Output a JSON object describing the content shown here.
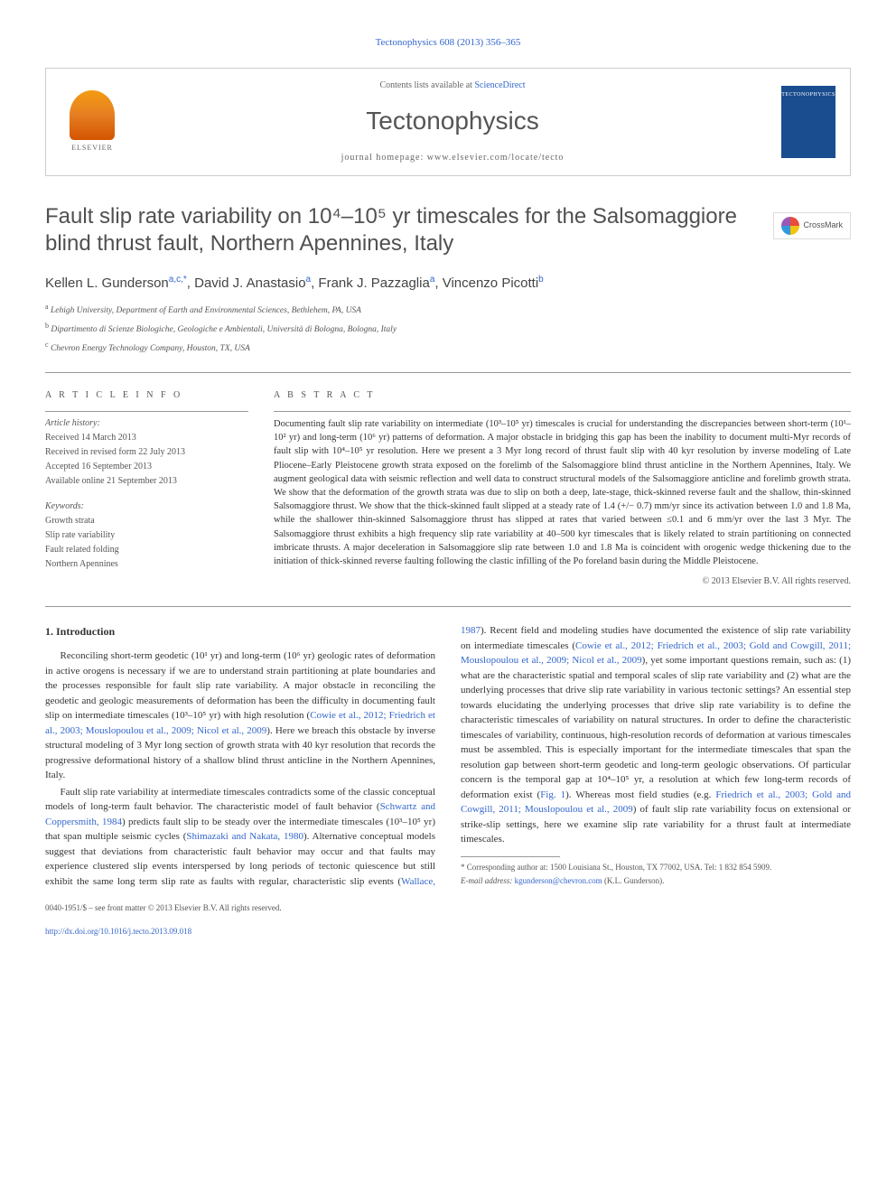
{
  "top_link": "Tectonophysics 608 (2013) 356–365",
  "header": {
    "contents_prefix": "Contents lists available at ",
    "contents_link": "ScienceDirect",
    "journal_name": "Tectonophysics",
    "homepage_prefix": "journal homepage: ",
    "homepage_url": "www.elsevier.com/locate/tecto",
    "elsevier_label": "ELSEVIER",
    "cover_label": "TECTONOPHYSICS"
  },
  "title": "Fault slip rate variability on 10⁴–10⁵ yr timescales for the Salsomaggiore blind thrust fault, Northern Apennines, Italy",
  "crossmark_label": "CrossMark",
  "authors_html": "Kellen L. Gunderson",
  "author1_sup": "a,c,",
  "author1_star": "*",
  "author2": ", David J. Anastasio",
  "author2_sup": "a",
  "author3": ", Frank J. Pazzaglia",
  "author3_sup": "a",
  "author4": ", Vincenzo Picotti",
  "author4_sup": "b",
  "affiliations": {
    "a": "Lehigh University, Department of Earth and Environmental Sciences, Bethlehem, PA, USA",
    "b": "Dipartimento di Scienze Biologiche, Geologiche e Ambientali, Università di Bologna, Bologna, Italy",
    "c": "Chevron Energy Technology Company, Houston, TX, USA"
  },
  "article_info": {
    "heading": "A R T I C L E   I N F O",
    "history_label": "Article history:",
    "received": "Received 14 March 2013",
    "revised": "Received in revised form 22 July 2013",
    "accepted": "Accepted 16 September 2013",
    "online": "Available online 21 September 2013",
    "keywords_label": "Keywords:",
    "kw1": "Growth strata",
    "kw2": "Slip rate variability",
    "kw3": "Fault related folding",
    "kw4": "Northern Apennines"
  },
  "abstract": {
    "heading": "A B S T R A C T",
    "text": "Documenting fault slip rate variability on intermediate (10³–10⁵ yr) timescales is crucial for understanding the discrepancies between short-term (10¹–10² yr) and long-term (10⁶ yr) patterns of deformation. A major obstacle in bridging this gap has been the inability to document multi-Myr records of fault slip with 10⁴–10⁵ yr resolution. Here we present a 3 Myr long record of thrust fault slip with 40 kyr resolution by inverse modeling of Late Pliocene–Early Pleistocene growth strata exposed on the forelimb of the Salsomaggiore blind thrust anticline in the Northern Apennines, Italy. We augment geological data with seismic reflection and well data to construct structural models of the Salsomaggiore anticline and forelimb growth strata. We show that the deformation of the growth strata was due to slip on both a deep, late-stage, thick-skinned reverse fault and the shallow, thin-skinned Salsomaggiore thrust. We show that the thick-skinned fault slipped at a steady rate of 1.4 (+/− 0.7) mm/yr since its activation between 1.0 and 1.8 Ma, while the shallower thin-skinned Salsomaggiore thrust has slipped at rates that varied between ≤0.1 and 6 mm/yr over the last 3 Myr. The Salsomaggiore thrust exhibits a high frequency slip rate variability at 40–500 kyr timescales that is likely related to strain partitioning on connected imbricate thrusts. A major deceleration in Salsomaggiore slip rate between 1.0 and 1.8 Ma is coincident with orogenic wedge thickening due to the initiation of thick-skinned reverse faulting following the clastic infilling of the Po foreland basin during the Middle Pleistocene.",
    "copyright": "© 2013 Elsevier B.V. All rights reserved."
  },
  "section1": {
    "heading": "1. Introduction",
    "p1a": "Reconciling short-term geodetic (10¹ yr) and long-term (10⁶ yr) geologic rates of deformation in active orogens is necessary if we are to understand strain partitioning at plate boundaries and the processes responsible for fault slip rate variability. A major obstacle in reconciling the geodetic and geologic measurements of deformation has been the difficulty in documenting fault slip on intermediate timescales (10³–10⁵ yr) with high resolution (",
    "p1ref1": "Cowie et al., 2012; Friedrich et al., 2003; Mouslopoulou et al., 2009; Nicol et al., 2009",
    "p1b": "). Here we breach this obstacle by inverse structural modeling of 3 Myr long section of growth strata with 40 kyr resolution that records the progressive deformational history of a shallow blind thrust anticline in the Northern Apennines, Italy.",
    "p2a": "Fault slip rate variability at intermediate timescales contradicts some of the classic conceptual models of long-term fault behavior. The characteristic model of fault behavior (",
    "p2ref1": "Schwartz and Coppersmith, 1984",
    "p2b": ") predicts fault slip to be steady over the intermediate timescales (10³–10⁵ yr) that span multiple seismic cycles (",
    "p2ref2": "Shimazaki and Nakata, 1980",
    "p2c": "). Alternative conceptual models suggest that deviations from ",
    "p3a": "characteristic fault behavior may occur and that faults may experience clustered slip events interspersed by long periods of tectonic quiescence but still exhibit the same long term slip rate as faults with regular, characteristic slip events (",
    "p3ref1": "Wallace, 1987",
    "p3b": "). Recent field and modeling studies have documented the existence of slip rate variability on intermediate timescales (",
    "p3ref2": "Cowie et al., 2012; Friedrich et al., 2003; Gold and Cowgill, 2011; Mouslopoulou et al., 2009; Nicol et al., 2009",
    "p3c": "), yet some important questions remain, such as: (1) what are the characteristic spatial and temporal scales of slip rate variability and (2) what are the underlying processes that drive slip rate variability in various tectonic settings? An essential step towards elucidating the underlying processes that drive slip rate variability is to define the characteristic timescales of variability on natural structures. In order to define the characteristic timescales of variability, continuous, high-resolution records of deformation at various timescales must be assembled. This is especially important for the intermediate timescales that span the resolution gap between short-term geodetic and long-term geologic observations. Of particular concern is the temporal gap at 10⁴–10⁵ yr, a resolution at which few long-term records of deformation exist (",
    "p3ref3": "Fig. 1",
    "p3d": "). Whereas most field studies (e.g. ",
    "p3ref4": "Friedrich et al., 2003; Gold and Cowgill, 2011; Mouslopoulou et al., 2009",
    "p3e": ") of fault slip rate variability focus on extensional or strike-slip settings, here we examine slip rate variability for a thrust fault at intermediate timescales."
  },
  "footnotes": {
    "corresponding": "* Corresponding author at: 1500 Louisiana St., Houston, TX 77002, USA. Tel: 1 832 854 5909.",
    "email_label": "E-mail address: ",
    "email": "kgunderson@chevron.com",
    "email_suffix": " (K.L. Gunderson)."
  },
  "footer": {
    "line1": "0040-1951/$ – see front matter © 2013 Elsevier B.V. All rights reserved.",
    "doi": "http://dx.doi.org/10.1016/j.tecto.2013.09.018"
  },
  "colors": {
    "link": "#3366cc",
    "text": "#333333",
    "muted": "#555555",
    "border": "#cccccc",
    "elsevier_orange": "#e67e22",
    "cover_blue": "#1a4d8f"
  }
}
